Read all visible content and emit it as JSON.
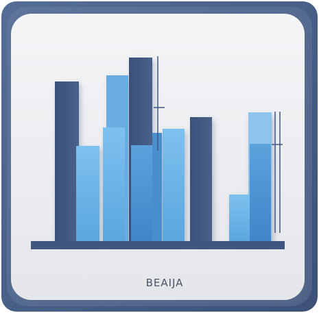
{
  "icon": {
    "caption": "BEAIJA",
    "colors": {
      "frame": "#4a6189",
      "frame_dark": "#3d5178",
      "panel": "#eaecef",
      "navy_bar": "#3f5680",
      "light_blue": "#6cb4e6",
      "mid_blue": "#4f93d2",
      "pale_blue": "#86c3ef",
      "baseline": "#3f5680",
      "caption": "#4a5466"
    }
  }
}
